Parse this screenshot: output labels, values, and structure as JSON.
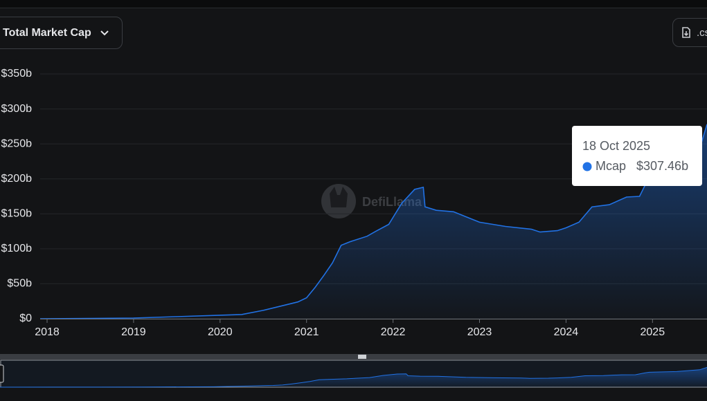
{
  "chart_data": {
    "type": "area",
    "title": "Total Market Cap",
    "download_label": ".csv",
    "watermark": "DefiLlama",
    "x": [
      2017.92,
      2018.5,
      2019.0,
      2019.5,
      2020.0,
      2020.25,
      2020.5,
      2020.7,
      2020.9,
      2021.0,
      2021.1,
      2021.2,
      2021.3,
      2021.4,
      2021.5,
      2021.7,
      2021.8,
      2021.95,
      2022.1,
      2022.25,
      2022.35,
      2022.37,
      2022.5,
      2022.7,
      2022.9,
      2023.0,
      2023.3,
      2023.6,
      2023.7,
      2023.9,
      2024.0,
      2024.15,
      2024.3,
      2024.5,
      2024.7,
      2024.85,
      2024.95,
      2025.0,
      2025.3,
      2025.55,
      2025.63
    ],
    "series": [
      {
        "name": "Mcap",
        "color": "#2172e5",
        "values": [
          0,
          0.5,
          1,
          3,
          5,
          6,
          12,
          18,
          24,
          30,
          45,
          62,
          80,
          105,
          110,
          118,
          125,
          135,
          165,
          185,
          188,
          160,
          155,
          153,
          143,
          138,
          132,
          128,
          124,
          126,
          130,
          138,
          160,
          163,
          174,
          175,
          200,
          210,
          220,
          245,
          278
        ]
      }
    ],
    "xlim": [
      2017.92,
      2025.63
    ],
    "xticks": [
      2018,
      2019,
      2020,
      2021,
      2022,
      2023,
      2024,
      2025
    ],
    "ylim": [
      0,
      350
    ],
    "yticks": [
      {
        "value": 0,
        "label": "$0"
      },
      {
        "value": 50,
        "label": "$50b"
      },
      {
        "value": 100,
        "label": "$100b"
      },
      {
        "value": 150,
        "label": "$150b"
      },
      {
        "value": 200,
        "label": "$200b"
      },
      {
        "value": 250,
        "label": "$250b"
      },
      {
        "value": 300,
        "label": "$300b"
      },
      {
        "value": 350,
        "label": "$350b"
      }
    ],
    "grid": true,
    "tooltip": {
      "date": "18 Oct 2025",
      "value": 307.46,
      "value_label": "$307.46b"
    }
  }
}
